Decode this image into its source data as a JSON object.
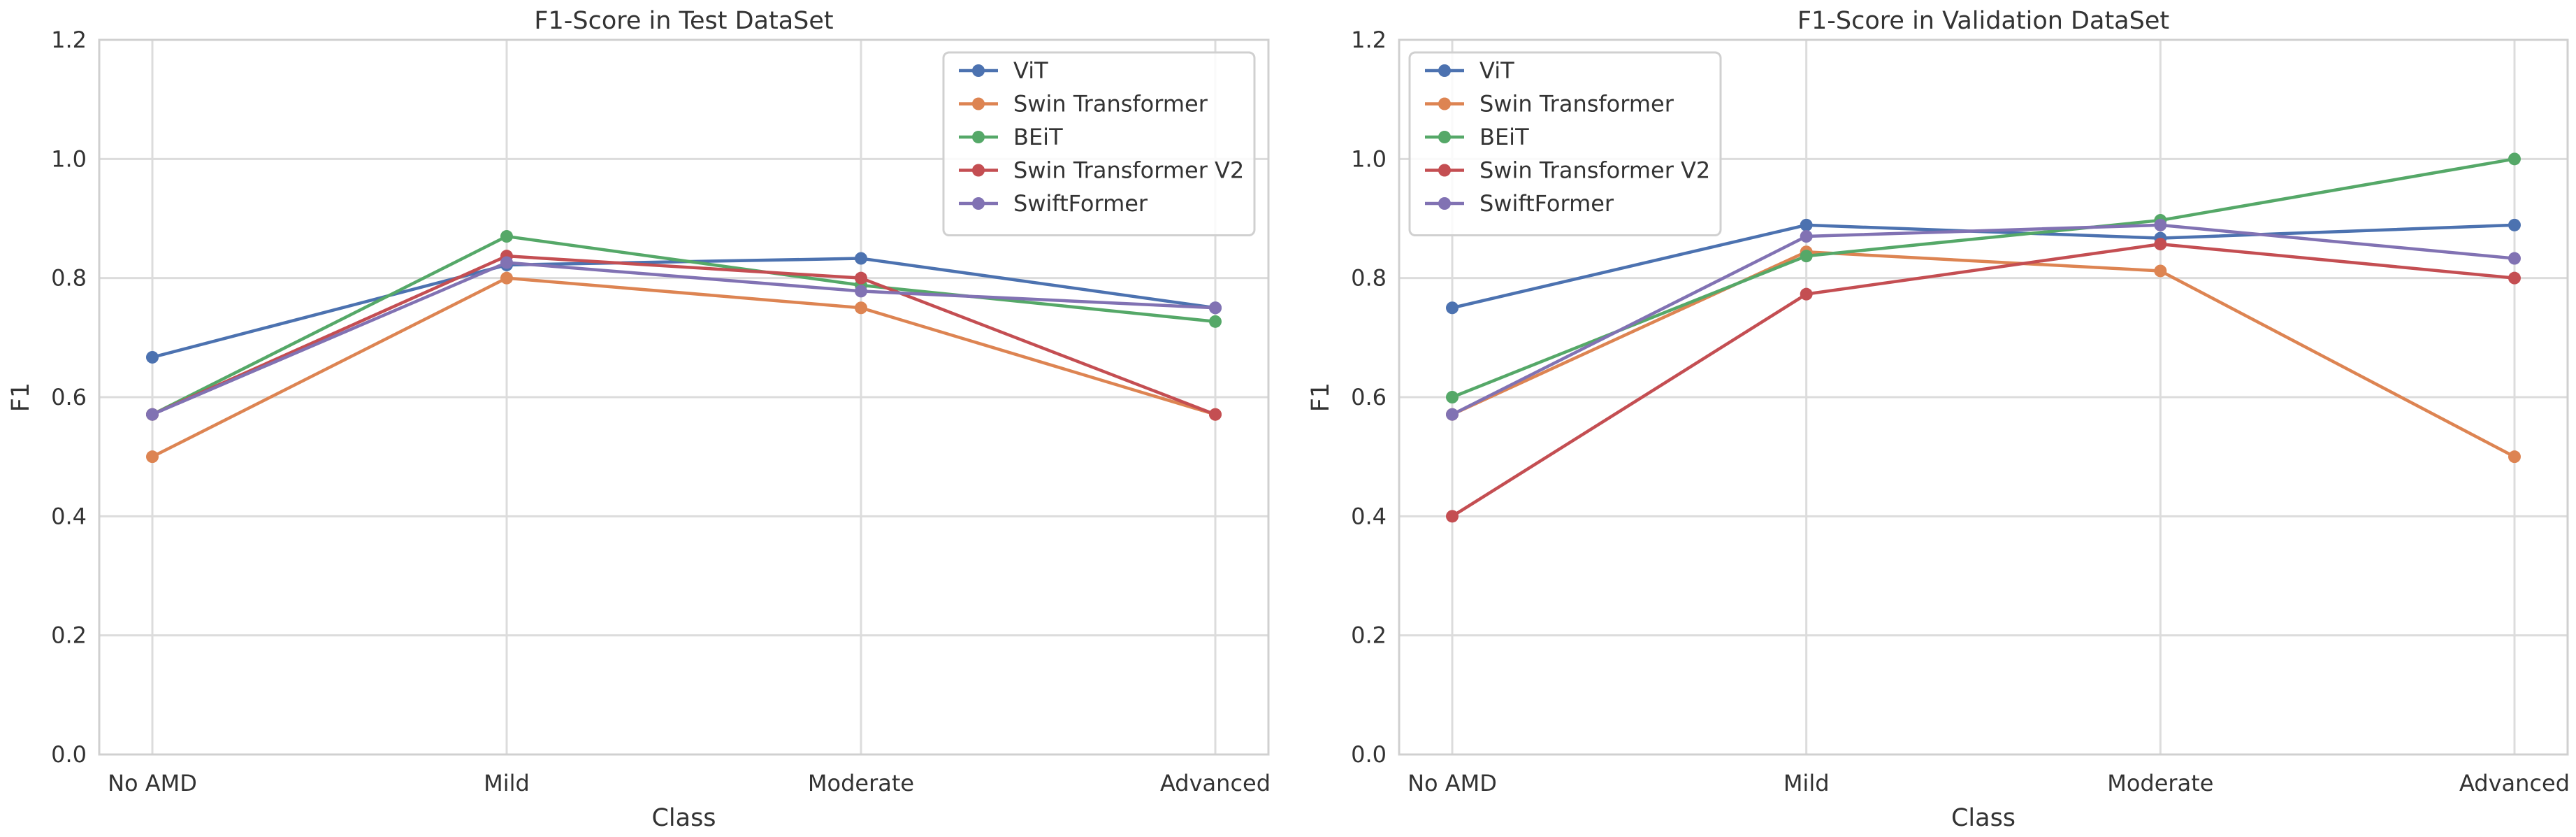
{
  "chart_data": [
    {
      "type": "line",
      "title": "F1-Score in Test DataSet",
      "xlabel": "Class",
      "ylabel": "F1",
      "categories": [
        "No AMD",
        "Mild",
        "Moderate",
        "Advanced"
      ],
      "ylim": [
        0.0,
        1.2
      ],
      "yticks": [
        0.0,
        0.2,
        0.4,
        0.6,
        0.8,
        1.0,
        1.2
      ],
      "ytick_labels": [
        "0.0",
        "0.2",
        "0.4",
        "0.6",
        "0.8",
        "1.0",
        "1.2"
      ],
      "grid": true,
      "legend_position": "top-right",
      "series": [
        {
          "name": "ViT",
          "color": "#4C72B0",
          "values": [
            0.667,
            0.822,
            0.833,
            0.75
          ]
        },
        {
          "name": "Swin Transformer",
          "color": "#DD8452",
          "values": [
            0.5,
            0.8,
            0.75,
            0.571
          ]
        },
        {
          "name": "BEiT",
          "color": "#55A868",
          "values": [
            0.571,
            0.87,
            0.788,
            0.727
          ]
        },
        {
          "name": "Swin Transformer V2",
          "color": "#C44E52",
          "values": [
            0.571,
            0.837,
            0.8,
            0.571
          ]
        },
        {
          "name": "SwiftFormer",
          "color": "#8172B3",
          "values": [
            0.571,
            0.826,
            0.778,
            0.75
          ]
        }
      ]
    },
    {
      "type": "line",
      "title": "F1-Score in Validation DataSet",
      "xlabel": "Class",
      "ylabel": "F1",
      "categories": [
        "No AMD",
        "Mild",
        "Moderate",
        "Advanced"
      ],
      "ylim": [
        0.0,
        1.2
      ],
      "yticks": [
        0.0,
        0.2,
        0.4,
        0.6,
        0.8,
        1.0,
        1.2
      ],
      "ytick_labels": [
        "0.0",
        "0.2",
        "0.4",
        "0.6",
        "0.8",
        "1.0",
        "1.2"
      ],
      "grid": true,
      "legend_position": "top-left",
      "series": [
        {
          "name": "ViT",
          "color": "#4C72B0",
          "values": [
            0.75,
            0.889,
            0.867,
            0.889
          ]
        },
        {
          "name": "Swin Transformer",
          "color": "#DD8452",
          "values": [
            0.571,
            0.844,
            0.812,
            0.5
          ]
        },
        {
          "name": "BEiT",
          "color": "#55A868",
          "values": [
            0.6,
            0.837,
            0.897,
            1.0
          ]
        },
        {
          "name": "Swin Transformer V2",
          "color": "#C44E52",
          "values": [
            0.4,
            0.773,
            0.857,
            0.8
          ]
        },
        {
          "name": "SwiftFormer",
          "color": "#8172B3",
          "values": [
            0.571,
            0.87,
            0.889,
            0.833
          ]
        }
      ]
    }
  ]
}
